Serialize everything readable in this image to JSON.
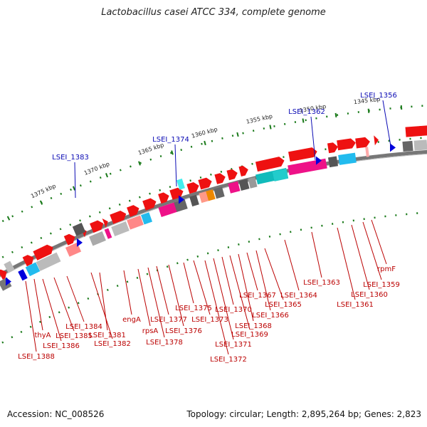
{
  "title": "Lactobacillus casei ATCC 334, complete genome",
  "footer": {
    "accession": "Accession: NC_008526",
    "topology": "Topology: circular; Length: 2,895,264 bp; Genes: 2,823"
  },
  "colors": {
    "backbone": "#777777",
    "forward_gene": "#ee1111",
    "ruler": "#1a7a1a",
    "upper_labels": "#0a0ab4",
    "lower_labels": "#bb0000"
  },
  "ruler_labels": [
    "1375 kbp",
    "1370 kbp",
    "1365 kbp",
    "1360 kbp",
    "1355 kbp",
    "1350 kbp",
    "1345 kbp"
  ],
  "upper_labels": [
    "LSEI_1383",
    "LSEI_1374",
    "LSEI_1362",
    "LSEI_1356"
  ],
  "lower_labels": [
    "LSEI_1388",
    "thyA",
    "LSEI_1386",
    "LSEI_1385",
    "LSEI_1384",
    "LSEI_1382",
    "LSEI_1381",
    "engA",
    "rpsA",
    "LSEI_1378",
    "LSEI_1377",
    "LSEI_1376",
    "LSEI_1375",
    "LSEI_1373",
    "LSEI_1372",
    "LSEI_1371",
    "LSEI_1370",
    "LSEI_1369",
    "LSEI_1368",
    "LSEI_1367",
    "LSEI_1366",
    "LSEI_1365",
    "LSEI_1364",
    "LSEI_1363",
    "LSEI_1361",
    "LSEI_1360",
    "LSEI_1359",
    "rpmF"
  ]
}
